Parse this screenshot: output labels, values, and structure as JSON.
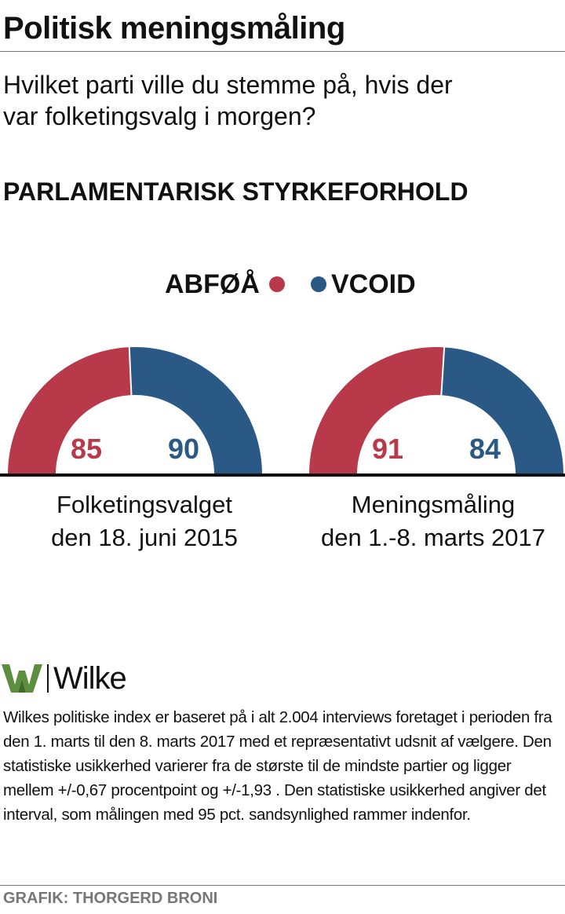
{
  "header": {
    "title": "Politisk meningsmåling",
    "question_line1": "Hvilket parti ville du stemme på, hvis der",
    "question_line2": "var folketingsvalg i morgen?"
  },
  "chart_data": {
    "type": "pie",
    "title": "PARLAMENTARISK STYRKEFORHOLD",
    "style": "semicircle-donut",
    "colors": {
      "ABFØÅ": "#b8394a",
      "VCOID": "#2b5985"
    },
    "legend": [
      {
        "name": "ABFØÅ",
        "color": "#b8394a",
        "marker_side": "right"
      },
      {
        "name": "VCOID",
        "color": "#2b5985",
        "marker_side": "left"
      }
    ],
    "charts": [
      {
        "label_line1": "Folketingsvalget",
        "label_line2": "den 18. juni 2015",
        "slices": [
          {
            "name": "ABFØÅ",
            "value": 85
          },
          {
            "name": "VCOID",
            "value": 90
          }
        ]
      },
      {
        "label_line1": "Meningsmåling",
        "label_line2": "den 1.-8. marts 2017",
        "slices": [
          {
            "name": "ABFØÅ",
            "value": 91
          },
          {
            "name": "VCOID",
            "value": 84
          }
        ]
      }
    ]
  },
  "source": {
    "logo_text": "Wilke",
    "logo_icon": "wilke-w-icon",
    "note": "Wilkes politiske index er baseret på i alt 2.004  interviews foretaget i perioden fra den 1. marts til den 8. marts 2017 med et repræsentativt udsnit af vælgere. Den statistiske usikkerhed varierer fra de største til de mindste partier og ligger mellem +/-0,67 procentpoint og +/-1,93 . Den statistiske usikkerhed angiver det interval, som målingen med 95 pct. sandsynlighed rammer indenfor.",
    "credit": "GRAFIK: THORGERD BRONI"
  }
}
